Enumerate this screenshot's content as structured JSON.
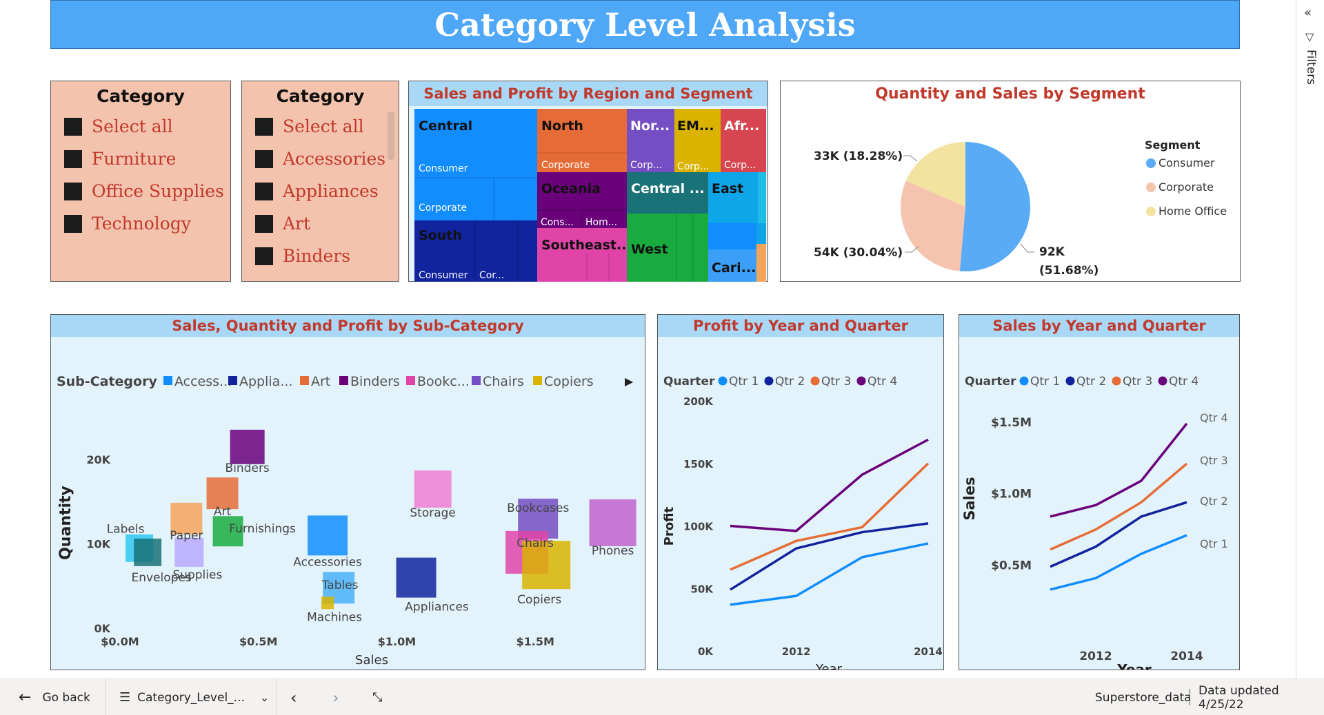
{
  "page": {
    "title": "Category Level Analysis"
  },
  "slicer_category": {
    "title": "Category",
    "items": [
      "Select all",
      "Furniture",
      "Office Supplies",
      "Technology"
    ]
  },
  "slicer_subcategory": {
    "title": "Category",
    "items": [
      "Select all",
      "Accessories",
      "Appliances",
      "Art",
      "Binders"
    ]
  },
  "treemap": {
    "title": "Sales and Profit by Region and Segment",
    "regions": [
      {
        "label": "Central",
        "color": "#118dff"
      },
      {
        "label": "North",
        "color": "#e66c37"
      },
      {
        "label": "Nor...",
        "color": "#744ec2"
      },
      {
        "label": "EM...",
        "color": "#d9b300"
      },
      {
        "label": "Afr...",
        "color": "#d64550"
      },
      {
        "label": "Oceania",
        "color": "#6b007b"
      },
      {
        "label": "Central ...",
        "color": "#197278"
      },
      {
        "label": "East",
        "color": "#0ea5e9"
      },
      {
        "label": "South",
        "color": "#12239e"
      },
      {
        "label": "Southeast...",
        "color": "#e044a7"
      },
      {
        "label": "West",
        "color": "#1aab40"
      },
      {
        "label": "Cari...",
        "color": "#118dff"
      }
    ],
    "sublabels": [
      "Consumer",
      "Corporate",
      "Corporate",
      "Corp...",
      "Corp...",
      "Corp...",
      "Cons...",
      "Hom...",
      "Consumer",
      "Cor..."
    ]
  },
  "legend_labels": {
    "segment": "Segment",
    "subcategory": "Sub-Category",
    "quarter": "Quarter"
  },
  "footer": {
    "go_back": "Go back",
    "page_name": "Category_Level_...",
    "dataset": "Superstore_data",
    "updated": "Data updated 4/25/22"
  },
  "filters_label": "Filters",
  "chart_data": [
    {
      "id": "pie",
      "type": "pie",
      "title": "Quantity and Sales by Segment",
      "legend_title": "Segment",
      "legend_position": "top-right",
      "slices": [
        {
          "name": "Consumer",
          "value": 92,
          "label": "92K",
          "pct": "(51.68%)",
          "color": "#5aabf5"
        },
        {
          "name": "Corporate",
          "value": 54,
          "label": "54K (30.04%)",
          "color": "#f5c4af"
        },
        {
          "name": "Home Office",
          "value": 33,
          "label": "33K (18.28%)",
          "color": "#f3e3a0"
        }
      ]
    },
    {
      "id": "scatter",
      "type": "scatter",
      "title": "Sales, Quantity and Profit by Sub-Category",
      "legend_title": "Sub-Category",
      "legend": [
        {
          "name": "Access...",
          "color": "#118dff"
        },
        {
          "name": "Applia...",
          "color": "#12239e"
        },
        {
          "name": "Art",
          "color": "#e66c37"
        },
        {
          "name": "Binders",
          "color": "#6b007b"
        },
        {
          "name": "Bookc...",
          "color": "#e044a7"
        },
        {
          "name": "Chairs",
          "color": "#744ec2"
        },
        {
          "name": "Copiers",
          "color": "#d9b300"
        }
      ],
      "xlabel": "Sales",
      "ylabel": "Quantity",
      "x_ticks": [
        "$0.0M",
        "$0.5M",
        "$1.0M",
        "$1.5M"
      ],
      "y_ticks": [
        "0K",
        "10K",
        "20K"
      ],
      "xlim": [
        0,
        1.8
      ],
      "ylim": [
        0,
        25000
      ],
      "points": [
        {
          "name": "Binders",
          "x": 0.46,
          "y": 21500,
          "color": "#6b007b"
        },
        {
          "name": "Art",
          "x": 0.37,
          "y": 16000,
          "color": "#e66c37"
        },
        {
          "name": "Storage",
          "x": 1.13,
          "y": 16500,
          "color": "#f17cd0"
        },
        {
          "name": "Labels",
          "x": 0.07,
          "y": 9500,
          "color": "#2fc7f0"
        },
        {
          "name": "Paper",
          "x": 0.24,
          "y": 13000,
          "color": "#f7a35a"
        },
        {
          "name": "Furnishings",
          "x": 0.39,
          "y": 11500,
          "color": "#1aab40"
        },
        {
          "name": "Envelopes",
          "x": 0.1,
          "y": 9000,
          "color": "#197278"
        },
        {
          "name": "Supplies",
          "x": 0.25,
          "y": 9000,
          "color": "#b9a8ff"
        },
        {
          "name": "Accessories",
          "x": 0.75,
          "y": 11000,
          "color": "#118dff"
        },
        {
          "name": "Tables",
          "x": 0.79,
          "y": 4800,
          "color": "#4ab0f7"
        },
        {
          "name": "Machines",
          "x": 0.75,
          "y": 3000,
          "color": "#d9b300"
        },
        {
          "name": "Appliances",
          "x": 1.07,
          "y": 6000,
          "color": "#12239e"
        },
        {
          "name": "Bookcases",
          "x": 1.51,
          "y": 13000,
          "color": "#744ec2"
        },
        {
          "name": "Chairs",
          "x": 1.47,
          "y": 9000,
          "color": "#e044a7"
        },
        {
          "name": "Copiers",
          "x": 1.54,
          "y": 7500,
          "color": "#d9b300"
        },
        {
          "name": "Phones",
          "x": 1.78,
          "y": 12500,
          "color": "#c062cc"
        }
      ]
    },
    {
      "id": "profit",
      "type": "line",
      "title": "Profit by Year and Quarter",
      "legend_title": "Quarter",
      "xlabel": "Year",
      "ylabel": "Profit",
      "x": [
        2011,
        2012,
        2013,
        2014
      ],
      "x_ticks": [
        "2012",
        "2014"
      ],
      "y_ticks": [
        "0K",
        "50K",
        "100K",
        "150K",
        "200K"
      ],
      "ylim": [
        0,
        200000
      ],
      "series": [
        {
          "name": "Qtr 1",
          "values": [
            37000,
            44000,
            75000,
            86000
          ],
          "color": "#118dff"
        },
        {
          "name": "Qtr 2",
          "values": [
            49000,
            82000,
            95000,
            102000
          ],
          "color": "#12239e"
        },
        {
          "name": "Qtr 3",
          "values": [
            65000,
            88000,
            99000,
            150000
          ],
          "color": "#e66c37"
        },
        {
          "name": "Qtr 4",
          "values": [
            100000,
            96000,
            141000,
            169000
          ],
          "color": "#6b007b"
        }
      ]
    },
    {
      "id": "sales",
      "type": "line",
      "title": "Sales by Year and Quarter",
      "legend_title": "Quarter",
      "xlabel": "Year",
      "ylabel": "Sales",
      "x": [
        2011,
        2012,
        2013,
        2014
      ],
      "x_ticks": [
        "2012",
        "2014"
      ],
      "y_ticks": [
        "$0.5M",
        "$1.0M",
        "$1.5M"
      ],
      "ylim": [
        0.2,
        1.6
      ],
      "series": [
        {
          "name": "Qtr 1",
          "values": [
            0.33,
            0.41,
            0.58,
            0.71
          ],
          "color": "#118dff",
          "end_label": "Qtr 1"
        },
        {
          "name": "Qtr 2",
          "values": [
            0.49,
            0.63,
            0.84,
            0.94
          ],
          "color": "#12239e",
          "end_label": "Qtr 2"
        },
        {
          "name": "Qtr 3",
          "values": [
            0.61,
            0.75,
            0.94,
            1.21
          ],
          "color": "#e66c37",
          "end_label": "Qtr 3"
        },
        {
          "name": "Qtr 4",
          "values": [
            0.84,
            0.92,
            1.09,
            1.49
          ],
          "color": "#6b007b",
          "end_label": "Qtr 4"
        }
      ]
    }
  ]
}
